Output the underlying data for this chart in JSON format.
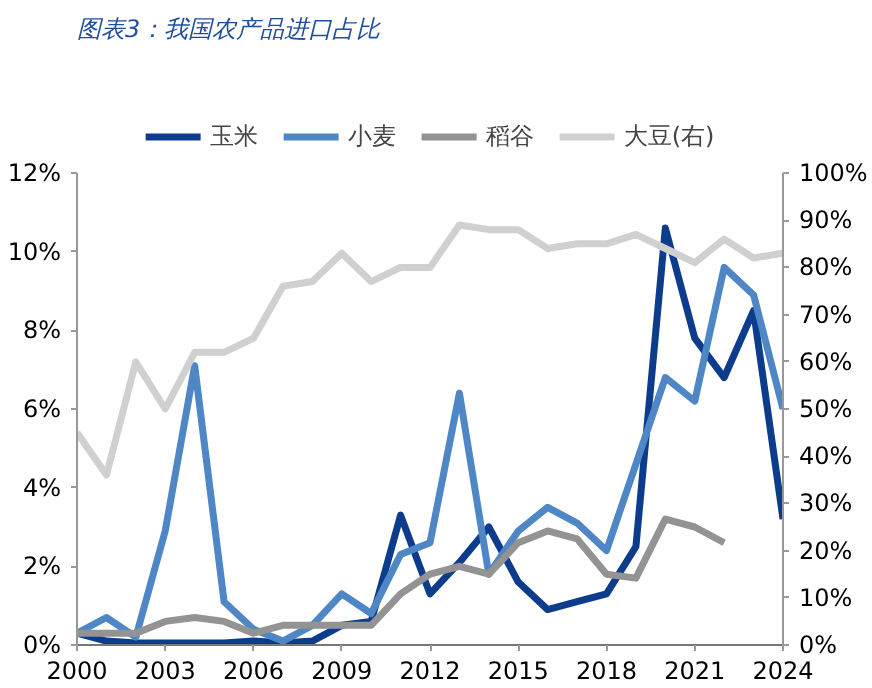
{
  "chart_data": {
    "type": "line",
    "title": "图表3：我国农产品进口占比",
    "x": [
      2000,
      2001,
      2002,
      2003,
      2004,
      2005,
      2006,
      2007,
      2008,
      2009,
      2010,
      2011,
      2012,
      2013,
      2014,
      2015,
      2016,
      2017,
      2018,
      2019,
      2020,
      2021,
      2022,
      2023,
      2024
    ],
    "series": [
      {
        "name": "玉米",
        "color": "#0d3c8c",
        "values": [
          0.3,
          0.1,
          0.05,
          0.05,
          0.05,
          0.05,
          0.1,
          0.05,
          0.1,
          0.5,
          0.6,
          3.3,
          1.3,
          2.1,
          3.0,
          1.6,
          0.9,
          1.1,
          1.3,
          2.5,
          10.6,
          7.8,
          6.8,
          8.5,
          3.2
        ]
      },
      {
        "name": "小麦",
        "color": "#4f86c6",
        "values": [
          0.3,
          0.7,
          0.2,
          2.9,
          7.1,
          1.1,
          0.4,
          0.1,
          0.5,
          1.3,
          0.8,
          2.3,
          2.6,
          6.4,
          1.8,
          2.9,
          3.5,
          3.1,
          2.4,
          4.6,
          6.8,
          6.2,
          9.6,
          8.9,
          6.0
        ]
      },
      {
        "name": "稻谷",
        "color": "#939393",
        "values": [
          0.3,
          0.3,
          0.3,
          0.6,
          0.7,
          0.6,
          0.3,
          0.5,
          0.5,
          0.5,
          0.5,
          1.3,
          1.8,
          2.0,
          1.8,
          2.6,
          2.9,
          2.7,
          1.8,
          1.7,
          3.2,
          3.0,
          2.6,
          null,
          null
        ]
      },
      {
        "name": "大豆(右)",
        "color": "#d0d0d0",
        "axis": "y2",
        "values": [
          45,
          36,
          60,
          50,
          62,
          62,
          65,
          76,
          77,
          83,
          77,
          80,
          80,
          89,
          88,
          88,
          84,
          85,
          85,
          87,
          84,
          81,
          86,
          82,
          83
        ]
      }
    ],
    "xlim": [
      2000,
      2024
    ],
    "xticks": [
      2000,
      2003,
      2006,
      2009,
      2012,
      2015,
      2018,
      2021,
      2024
    ],
    "ylim": [
      0,
      12
    ],
    "yticks": [
      {
        "value": 0,
        "label": "0%"
      },
      {
        "value": 2,
        "label": "2%"
      },
      {
        "value": 4,
        "label": "4%"
      },
      {
        "value": 6,
        "label": "6%"
      },
      {
        "value": 8,
        "label": "8%"
      },
      {
        "value": 10,
        "label": "10%"
      },
      {
        "value": 12,
        "label": "12%"
      }
    ],
    "y2lim": [
      0,
      100
    ],
    "y2ticks": [
      {
        "value": 0,
        "label": "0%"
      },
      {
        "value": 10,
        "label": "10%"
      },
      {
        "value": 20,
        "label": "20%"
      },
      {
        "value": 30,
        "label": "30%"
      },
      {
        "value": 40,
        "label": "40%"
      },
      {
        "value": 50,
        "label": "50%"
      },
      {
        "value": 60,
        "label": "60%"
      },
      {
        "value": 70,
        "label": "70%"
      },
      {
        "value": 80,
        "label": "80%"
      },
      {
        "value": 90,
        "label": "90%"
      },
      {
        "value": 100,
        "label": "100%"
      }
    ],
    "legend": "top",
    "grid": false,
    "marker": "none",
    "line_style": "solid"
  }
}
